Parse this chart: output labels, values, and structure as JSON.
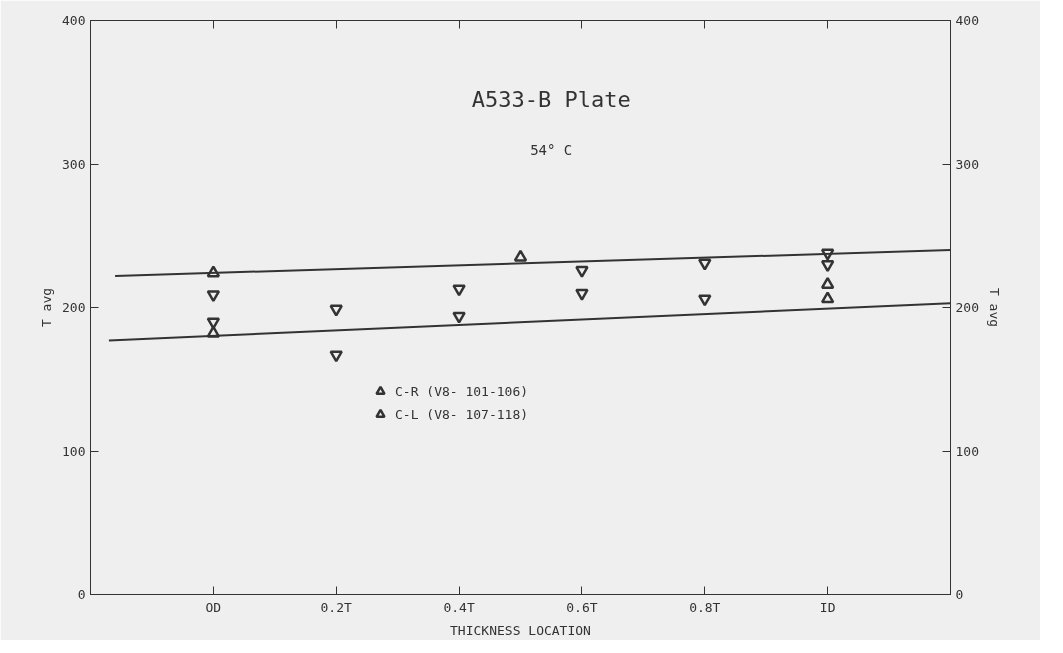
{
  "chart_data": {
    "type": "scatter",
    "title": "A533-B Plate",
    "subtitle": "54° C",
    "xlabel": "THICKNESS LOCATION",
    "ylabel": "T avg",
    "y2label": "T avg",
    "xlim": [
      -0.2,
      1.2
    ],
    "xticks": [
      {
        "value": 0,
        "label": "OD"
      },
      {
        "value": 0.2,
        "label": "0.2T"
      },
      {
        "value": 0.4,
        "label": "0.4T"
      },
      {
        "value": 0.6,
        "label": "0.6T"
      },
      {
        "value": 0.8,
        "label": "0.8T"
      },
      {
        "value": 1.0,
        "label": "ID"
      }
    ],
    "ylim": [
      0,
      400
    ],
    "yticks": [
      0,
      100,
      200,
      300,
      400
    ],
    "y2lim": [
      0,
      400
    ],
    "y2ticks": [
      0,
      100,
      200,
      300,
      400
    ],
    "grid": false,
    "legend": "center",
    "series": [
      {
        "name": "C-R (V8- 101-106)",
        "color": "#333333",
        "marker": "triangle",
        "x": [
          0,
          0,
          0.5,
          1.0,
          1.0
        ],
        "values": [
          224,
          182,
          235,
          216,
          206
        ]
      },
      {
        "name": "C-L (V8- 107-118)",
        "color": "#333333",
        "marker": "triangle",
        "x": [
          0,
          0,
          0.2,
          0.2,
          0.4,
          0.4,
          0.6,
          0.6,
          0.8,
          0.8,
          1.0,
          1.0
        ],
        "values": [
          209,
          190,
          199,
          167,
          213,
          194,
          226,
          210,
          231,
          206,
          238,
          230
        ]
      },
      {
        "type": "line",
        "color": "#333333",
        "line_style": "solid",
        "x": [
          -0.16,
          1.2
        ],
        "values": [
          222,
          240
        ]
      },
      {
        "type": "line",
        "color": "#333333",
        "line_style": "solid",
        "x": [
          -0.17,
          1.2
        ],
        "values": [
          177,
          203
        ]
      }
    ]
  }
}
